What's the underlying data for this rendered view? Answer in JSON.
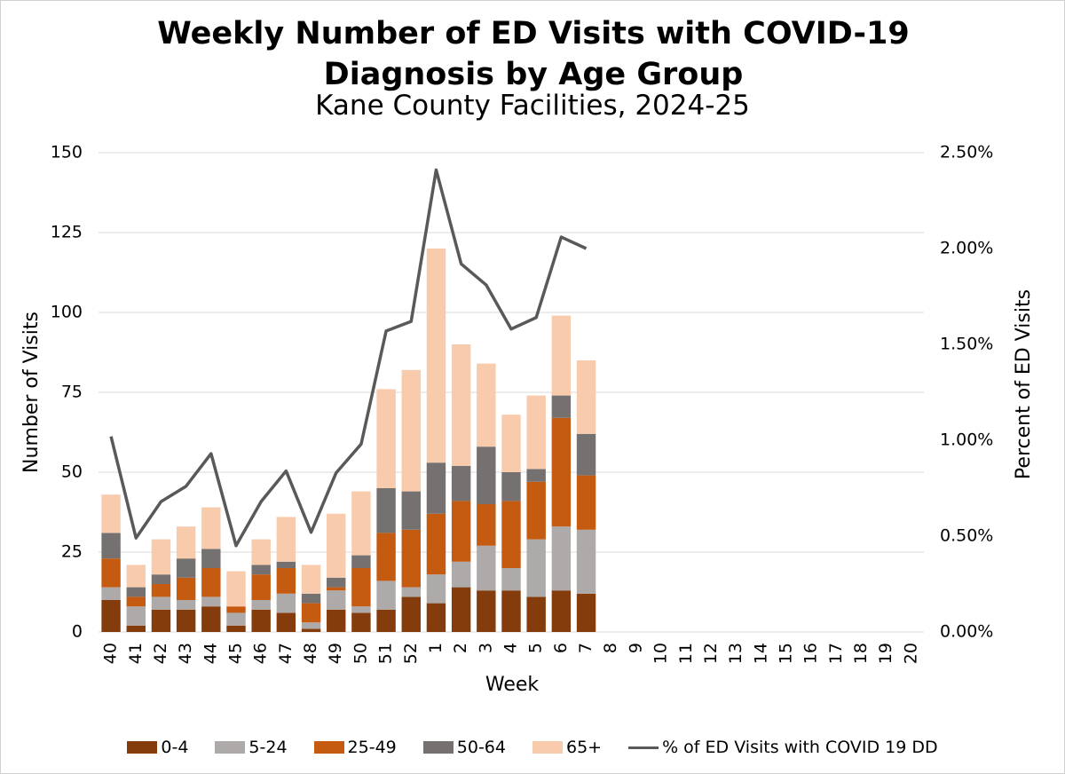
{
  "chart_data": {
    "type": "bar",
    "title": "Weekly Number of ED Visits with COVID-19 Diagnosis by Age Group",
    "subtitle": "Kane County Facilities, 2024-25",
    "x_label": "Week",
    "y_label": "Number of Visits",
    "y2_label": "Percent of ED Visits",
    "stacked": true,
    "grid": true,
    "legend": "bottom",
    "categories": [
      "40",
      "41",
      "42",
      "43",
      "44",
      "45",
      "46",
      "47",
      "48",
      "49",
      "50",
      "51",
      "52",
      "1",
      "2",
      "3",
      "4",
      "5",
      "6",
      "7",
      "8",
      "9",
      "10",
      "11",
      "12",
      "13",
      "14",
      "15",
      "16",
      "17",
      "18",
      "19",
      "20"
    ],
    "ylim": [
      0,
      150
    ],
    "yticks": [
      0,
      25,
      50,
      75,
      100,
      125,
      150
    ],
    "y2lim": [
      0,
      2.5
    ],
    "y2ticks": [
      {
        "value": 0,
        "label": "0.00%"
      },
      {
        "value": 0.5,
        "label": "0.50%"
      },
      {
        "value": 1,
        "label": "1.00%"
      },
      {
        "value": 1.5,
        "label": "1.50%"
      },
      {
        "value": 2,
        "label": "2.00%"
      },
      {
        "value": 2.5,
        "label": "2.50%"
      }
    ],
    "series": [
      {
        "name": "0-4",
        "color": "#843c0c",
        "values": [
          10,
          2,
          7,
          7,
          8,
          2,
          7,
          6,
          1,
          7,
          6,
          7,
          11,
          9,
          14,
          13,
          13,
          11,
          13,
          12,
          null,
          null,
          null,
          null,
          null,
          null,
          null,
          null,
          null,
          null,
          null,
          null,
          null
        ]
      },
      {
        "name": "5-24",
        "color": "#aeaaaa",
        "values": [
          4,
          6,
          4,
          3,
          3,
          4,
          3,
          6,
          2,
          6,
          2,
          9,
          3,
          9,
          8,
          14,
          7,
          18,
          20,
          20,
          null,
          null,
          null,
          null,
          null,
          null,
          null,
          null,
          null,
          null,
          null,
          null,
          null
        ]
      },
      {
        "name": "25-49",
        "color": "#c55a11",
        "values": [
          9,
          3,
          4,
          7,
          9,
          2,
          8,
          8,
          6,
          1,
          12,
          15,
          18,
          19,
          19,
          13,
          21,
          18,
          34,
          17,
          null,
          null,
          null,
          null,
          null,
          null,
          null,
          null,
          null,
          null,
          null,
          null,
          null
        ]
      },
      {
        "name": "50-64",
        "color": "#767171",
        "values": [
          8,
          3,
          3,
          6,
          6,
          0,
          3,
          2,
          3,
          3,
          4,
          14,
          12,
          16,
          11,
          18,
          9,
          4,
          7,
          13,
          null,
          null,
          null,
          null,
          null,
          null,
          null,
          null,
          null,
          null,
          null,
          null,
          null
        ]
      },
      {
        "name": "65+",
        "color": "#f8cbad",
        "values": [
          12,
          7,
          11,
          10,
          13,
          11,
          8,
          14,
          9,
          20,
          20,
          31,
          38,
          67,
          38,
          26,
          18,
          23,
          25,
          23,
          null,
          null,
          null,
          null,
          null,
          null,
          null,
          null,
          null,
          null,
          null,
          null,
          null
        ]
      },
      {
        "name": "% of ED Visits with COVID 19 DD",
        "color": "#595959",
        "type": "line",
        "axis": "y2",
        "values": [
          1.02,
          0.49,
          0.68,
          0.76,
          0.93,
          0.45,
          0.68,
          0.84,
          0.52,
          0.83,
          0.98,
          1.57,
          1.62,
          2.41,
          1.92,
          1.81,
          1.58,
          1.64,
          2.06,
          2.0,
          null,
          null,
          null,
          null,
          null,
          null,
          null,
          null,
          null,
          null,
          null,
          null,
          null
        ]
      }
    ]
  }
}
